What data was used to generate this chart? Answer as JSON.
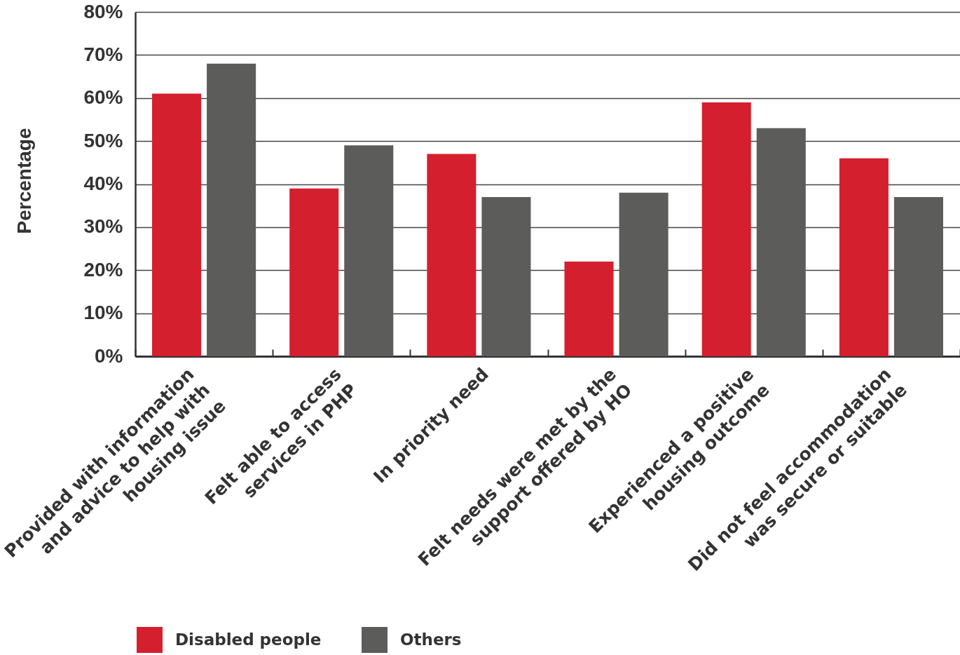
{
  "chart_data": {
    "type": "bar",
    "ylabel": "Percentage",
    "categories": [
      "Provided with information and advice to help with housing issue",
      "Felt able to access services in PHP",
      "In priority need",
      "Felt needs were met by the support offered by HO",
      "Experienced a positive housing outcome",
      "Did not feel accommodation was secure or suitable"
    ],
    "series": [
      {
        "name": "Disabled people",
        "color": "#d41f2e",
        "values": [
          61,
          39,
          47,
          22,
          59,
          46
        ]
      },
      {
        "name": "Others",
        "color": "#5c5d5a",
        "values": [
          68,
          49,
          37,
          38,
          53,
          37
        ]
      }
    ],
    "ylim": [
      0,
      80
    ],
    "yticks": [
      {
        "value": 0,
        "label": "0%"
      },
      {
        "value": 10,
        "label": "10%"
      },
      {
        "value": 20,
        "label": "20%"
      },
      {
        "value": 30,
        "label": "30%"
      },
      {
        "value": 40,
        "label": "40%"
      },
      {
        "value": 50,
        "label": "50%"
      },
      {
        "value": 60,
        "label": "60%"
      },
      {
        "value": 70,
        "label": "70%"
      },
      {
        "value": 80,
        "label": "80%"
      }
    ],
    "grid": "y",
    "legend": "bottom left"
  }
}
